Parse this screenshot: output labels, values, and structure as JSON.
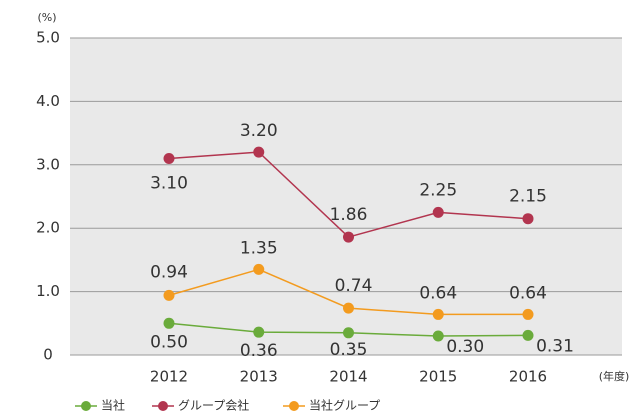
{
  "chart_data": {
    "type": "line",
    "y_unit": "(%)",
    "x_unit": "(年度)",
    "categories": [
      "2012",
      "2013",
      "2014",
      "2015",
      "2016"
    ],
    "series": [
      {
        "name": "当社",
        "color": "#6aab3b",
        "values": [
          0.5,
          0.36,
          0.35,
          0.3,
          0.31
        ],
        "value_labels": [
          "0.50",
          "0.36",
          "0.35",
          "0.30",
          "0.31"
        ]
      },
      {
        "name": "グループ会社",
        "color": "#b2354f",
        "values": [
          3.1,
          3.2,
          1.86,
          2.25,
          2.15
        ],
        "value_labels": [
          "3.10",
          "3.20",
          "1.86",
          "2.25",
          "2.15"
        ]
      },
      {
        "name": "当社グループ",
        "color": "#f39b1f",
        "values": [
          0.94,
          1.35,
          0.74,
          0.64,
          0.64
        ],
        "value_labels": [
          "0.94",
          "1.35",
          "0.74",
          "0.64",
          "0.64"
        ]
      }
    ],
    "ylim": [
      0,
      5
    ],
    "yticks": [
      0,
      {
        "value": 1,
        "label": "1.0"
      },
      {
        "value": 2,
        "label": "2.0"
      },
      {
        "value": 3,
        "label": "3.0"
      },
      {
        "value": 4,
        "label": "4.0"
      },
      {
        "value": 5,
        "label": "5.0"
      }
    ],
    "grid": true,
    "legend": "bottom"
  }
}
